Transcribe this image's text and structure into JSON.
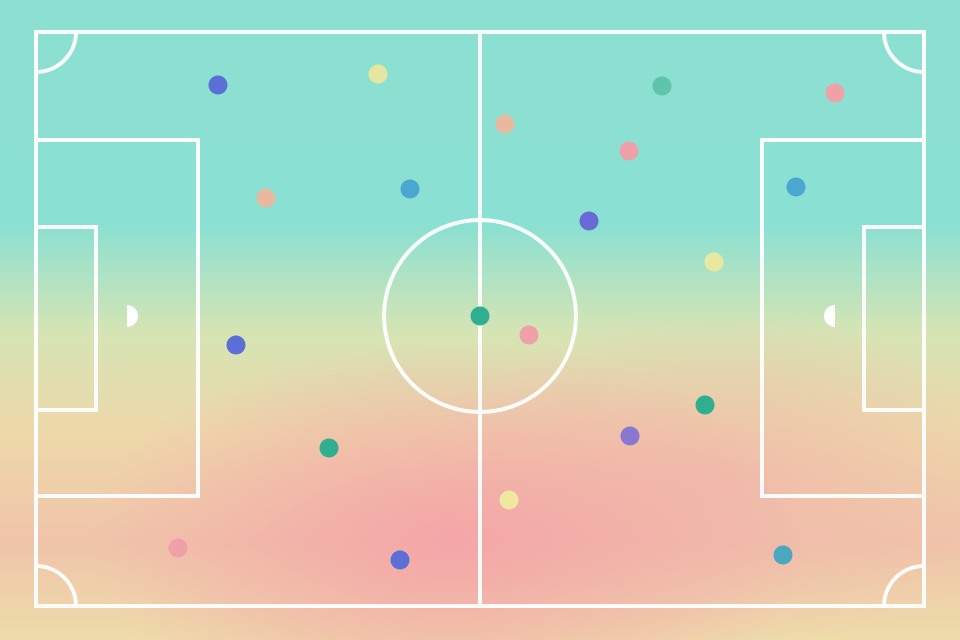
{
  "pitch": {
    "line_color": "#ffffff",
    "background_colors": [
      "#8ce0d2",
      "#eed8aa",
      "#f4a4a8"
    ]
  },
  "players": [
    {
      "color": "#5b6fd6"
    },
    {
      "color": "#e6e6a0"
    },
    {
      "color": "#5fc4a8"
    },
    {
      "color": "#f0a0a8"
    },
    {
      "color": "#e8b8a0"
    },
    {
      "color": "#f0a0a8"
    },
    {
      "color": "#e8b8a0"
    },
    {
      "color": "#4aa8d0"
    },
    {
      "color": "#4aa8d0"
    },
    {
      "color": "#6a6ad6"
    },
    {
      "color": "#e8e8a0"
    },
    {
      "color": "#2fae90"
    },
    {
      "color": "#f0a0a8"
    },
    {
      "color": "#5b6fd6"
    },
    {
      "color": "#2fae90"
    },
    {
      "color": "#8878d0"
    },
    {
      "color": "#2fae90"
    },
    {
      "color": "#f0e8a0"
    },
    {
      "color": "#f0a0a8"
    },
    {
      "color": "#5b6fd6"
    },
    {
      "color": "#4aa8c0"
    }
  ]
}
